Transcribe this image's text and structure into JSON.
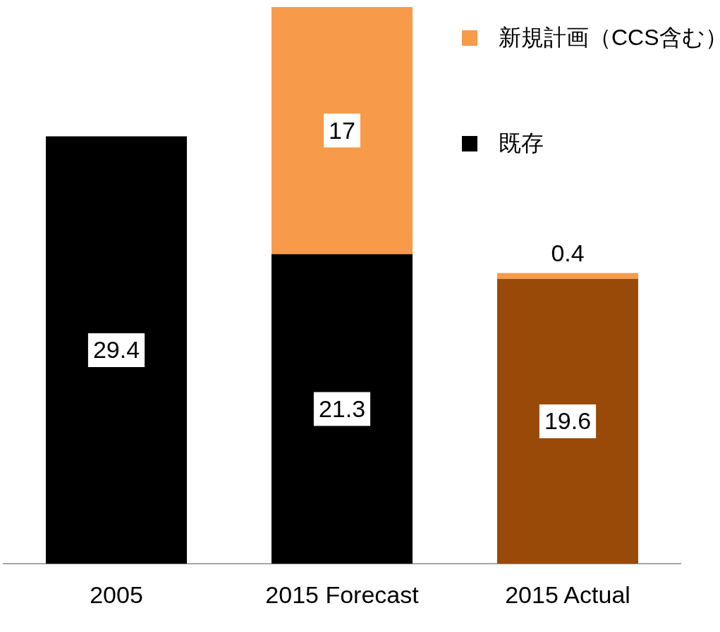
{
  "chart_data": {
    "type": "bar",
    "stacked": true,
    "data_labels": true,
    "legend": "top right",
    "grid": false,
    "categories": [
      "2005",
      "2015 Forecast",
      "2015 Actual"
    ],
    "series": [
      {
        "name": "既存",
        "color": "#000000",
        "colors": [
          "#000000",
          "#000000",
          "#994a08"
        ],
        "values": [
          29.4,
          21.3,
          19.6
        ]
      },
      {
        "name": "新規計画（CCS含む）",
        "color": "#f79a4a",
        "values": [
          null,
          17,
          0.4
        ]
      }
    ]
  }
}
